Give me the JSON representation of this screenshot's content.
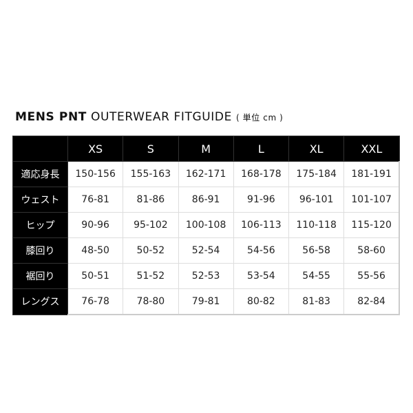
{
  "title": {
    "bold": "MENS PNT",
    "light": "OUTERWEAR FITGUIDE",
    "unit": "( 単位 cm )"
  },
  "table": {
    "corner": "",
    "headers": [
      "XS",
      "S",
      "M",
      "L",
      "XL",
      "XXL"
    ],
    "rows": [
      {
        "label": "適応身長",
        "values": [
          "150-156",
          "155-163",
          "162-171",
          "168-178",
          "175-184",
          "181-191"
        ]
      },
      {
        "label": "ウェスト",
        "values": [
          "76-81",
          "81-86",
          "86-91",
          "91-96",
          "96-101",
          "101-107"
        ]
      },
      {
        "label": "ヒップ",
        "values": [
          "90-96",
          "95-102",
          "100-108",
          "106-113",
          "110-118",
          "115-120"
        ]
      },
      {
        "label": "膝回り",
        "values": [
          "48-50",
          "50-52",
          "52-54",
          "54-56",
          "56-58",
          "58-60"
        ]
      },
      {
        "label": "裾回り",
        "values": [
          "50-51",
          "51-52",
          "52-53",
          "53-54",
          "54-55",
          "55-56"
        ]
      },
      {
        "label": "レングス",
        "values": [
          "76-78",
          "78-80",
          "79-81",
          "80-82",
          "81-83",
          "82-84"
        ]
      }
    ]
  }
}
